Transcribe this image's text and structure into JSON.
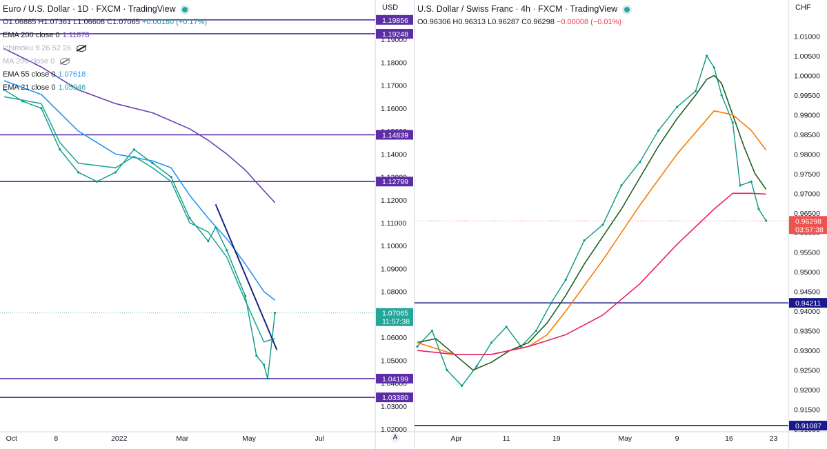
{
  "chart_data": [
    {
      "type": "line",
      "title": "Euro / U.S. Dollar · 1D · FXCM · TradingView",
      "symbol": "Euro / U.S. Dollar",
      "interval": "1D",
      "source": "FXCM",
      "platform": "TradingView",
      "ohlc": {
        "open": "O1.06885",
        "high": "H1.07361",
        "low": "L1.06608",
        "close": "C1.07065",
        "change": "+0.00180 (+0.17%)"
      },
      "indicators": [
        {
          "label": "EMA 200 close 0",
          "value": "1.11878",
          "color": "#6a3fb5",
          "hidden": false
        },
        {
          "label": "Ichimoku 9 26 52 26",
          "value": "",
          "color": "#b2b5be",
          "hidden": true
        },
        {
          "label": "MA 200 close 0",
          "value": "",
          "color": "#b2b5be",
          "hidden": true
        },
        {
          "label": "EMA 55 close 0",
          "value": "1.07618",
          "color": "#2196f3",
          "hidden": false
        },
        {
          "label": "EMA 21 close 0",
          "value": "1.05946",
          "color": "#26a69a",
          "hidden": false
        }
      ],
      "price_unit": "USD",
      "ylim": [
        1.02,
        1.2
      ],
      "y_ticks": [
        "1.19000",
        "1.18000",
        "1.17000",
        "1.16000",
        "1.15000",
        "1.14000",
        "1.13000",
        "1.12000",
        "1.11000",
        "1.10000",
        "1.09000",
        "1.08000",
        "1.07000",
        "1.06000",
        "1.05000",
        "1.04000",
        "1.03000",
        "1.02000"
      ],
      "x_labels": [
        "Oct",
        "8",
        "2022",
        "Mar",
        "May",
        "Jul"
      ],
      "x_label_positions": [
        0.02,
        0.14,
        0.31,
        0.48,
        0.66,
        0.85
      ],
      "horizontal_levels": [
        {
          "value": 1.19856,
          "label": "1.19856"
        },
        {
          "value": 1.19248,
          "label": "1.19248"
        },
        {
          "value": 1.14839,
          "label": "1.14839"
        },
        {
          "value": 1.12799,
          "label": "1.12799"
        },
        {
          "value": 1.04199,
          "label": "1.04199"
        },
        {
          "value": 1.0338,
          "label": "1.03380"
        }
      ],
      "last_price": {
        "value": 1.07065,
        "label": "1.07065",
        "countdown": "11:57:38"
      },
      "trendline": {
        "from": {
          "x": 0.57,
          "y": 1.118
        },
        "to": {
          "x": 0.735,
          "y": 1.0545
        },
        "color": "#1a237e"
      },
      "series": [
        {
          "name": "Close",
          "color": "#089981",
          "x": [
            0,
            0.05,
            0.1,
            0.15,
            0.2,
            0.25,
            0.3,
            0.35,
            0.4,
            0.45,
            0.5,
            0.55,
            0.57,
            0.6,
            0.65,
            0.68,
            0.7,
            0.71,
            0.73
          ],
          "values": [
            1.168,
            1.163,
            1.16,
            1.142,
            1.132,
            1.128,
            1.132,
            1.142,
            1.136,
            1.13,
            1.112,
            1.102,
            1.108,
            1.098,
            1.078,
            1.052,
            1.048,
            1.042,
            1.0707
          ]
        },
        {
          "name": "EMA 200 close 0",
          "color": "#6a3fb5",
          "x": [
            0,
            0.1,
            0.2,
            0.3,
            0.4,
            0.5,
            0.55,
            0.6,
            0.65,
            0.7,
            0.73
          ],
          "values": [
            1.186,
            1.178,
            1.168,
            1.162,
            1.158,
            1.151,
            1.146,
            1.14,
            1.133,
            1.124,
            1.1188
          ]
        },
        {
          "name": "EMA 55 close 0",
          "color": "#2196f3",
          "x": [
            0,
            0.1,
            0.2,
            0.3,
            0.4,
            0.45,
            0.5,
            0.55,
            0.6,
            0.65,
            0.7,
            0.73
          ],
          "values": [
            1.172,
            1.166,
            1.15,
            1.14,
            1.137,
            1.134,
            1.122,
            1.112,
            1.103,
            1.092,
            1.08,
            1.0762
          ]
        },
        {
          "name": "EMA 21 close 0",
          "color": "#26a69a",
          "x": [
            0,
            0.1,
            0.15,
            0.2,
            0.3,
            0.35,
            0.4,
            0.45,
            0.5,
            0.55,
            0.6,
            0.65,
            0.7,
            0.73
          ],
          "values": [
            1.165,
            1.162,
            1.145,
            1.136,
            1.134,
            1.139,
            1.134,
            1.128,
            1.11,
            1.106,
            1.095,
            1.076,
            1.058,
            1.0595
          ]
        }
      ]
    },
    {
      "type": "line",
      "title": "U.S. Dollar / Swiss Franc · 4h · FXCM · TradingView",
      "symbol": "U.S. Dollar / Swiss Franc",
      "interval": "4h",
      "source": "FXCM",
      "platform": "TradingView",
      "ohlc": {
        "open": "O0.96306",
        "high": "H0.96313",
        "low": "L0.96287",
        "close": "C0.96298",
        "change": "−0.00008 (−0.01%)"
      },
      "price_unit": "CHF",
      "ylim": [
        0.91,
        1.015
      ],
      "y_ticks": [
        "1.01000",
        "1.00500",
        "1.00000",
        "0.99500",
        "0.99000",
        "0.98500",
        "0.98000",
        "0.97500",
        "0.97000",
        "0.96500",
        "0.96000",
        "0.95500",
        "0.95000",
        "0.94500",
        "0.94000",
        "0.93500",
        "0.93000",
        "0.92500",
        "0.92000",
        "0.91500",
        "0.91000"
      ],
      "x_labels": [
        "Apr",
        "11",
        "19",
        "May",
        "9",
        "16",
        "23"
      ],
      "x_label_positions": [
        0.105,
        0.24,
        0.375,
        0.56,
        0.7,
        0.84,
        0.96
      ],
      "horizontal_levels": [
        {
          "value": 0.94211,
          "label": "0.94211"
        },
        {
          "value": 0.91087,
          "label": "0.91087"
        }
      ],
      "last_price": {
        "value": 0.96298,
        "label": "0.96298",
        "countdown": "03:57:38"
      },
      "series": [
        {
          "name": "Close",
          "color": "#089981",
          "x": [
            0,
            0.04,
            0.08,
            0.12,
            0.16,
            0.2,
            0.24,
            0.28,
            0.32,
            0.36,
            0.4,
            0.45,
            0.5,
            0.55,
            0.6,
            0.65,
            0.7,
            0.75,
            0.78,
            0.8,
            0.82,
            0.85,
            0.87,
            0.9,
            0.92,
            0.94
          ],
          "values": [
            0.931,
            0.935,
            0.925,
            0.921,
            0.926,
            0.932,
            0.936,
            0.931,
            0.935,
            0.942,
            0.948,
            0.958,
            0.962,
            0.972,
            0.978,
            0.986,
            0.992,
            0.996,
            1.005,
            1.002,
            0.995,
            0.988,
            0.972,
            0.973,
            0.966,
            0.963
          ]
        },
        {
          "name": "Green MA",
          "color": "#1b5e20",
          "x": [
            0,
            0.05,
            0.1,
            0.15,
            0.2,
            0.25,
            0.3,
            0.35,
            0.4,
            0.45,
            0.5,
            0.55,
            0.6,
            0.65,
            0.7,
            0.75,
            0.78,
            0.8,
            0.82,
            0.85,
            0.88,
            0.91,
            0.94
          ],
          "values": [
            0.932,
            0.933,
            0.929,
            0.925,
            0.927,
            0.93,
            0.932,
            0.937,
            0.944,
            0.952,
            0.959,
            0.966,
            0.974,
            0.982,
            0.989,
            0.995,
            0.999,
            1.0,
            0.998,
            0.99,
            0.982,
            0.975,
            0.971
          ]
        },
        {
          "name": "Orange MA",
          "color": "#f57c00",
          "x": [
            0,
            0.1,
            0.2,
            0.3,
            0.35,
            0.4,
            0.5,
            0.6,
            0.7,
            0.8,
            0.85,
            0.9,
            0.94
          ],
          "values": [
            0.932,
            0.929,
            0.929,
            0.931,
            0.934,
            0.94,
            0.953,
            0.967,
            0.98,
            0.991,
            0.99,
            0.986,
            0.981
          ]
        },
        {
          "name": "Red MA",
          "color": "#e91e63",
          "x": [
            0,
            0.1,
            0.2,
            0.3,
            0.4,
            0.5,
            0.6,
            0.7,
            0.8,
            0.85,
            0.9,
            0.94
          ],
          "values": [
            0.93,
            0.929,
            0.929,
            0.931,
            0.934,
            0.939,
            0.947,
            0.957,
            0.966,
            0.97,
            0.97,
            0.9698
          ]
        }
      ]
    }
  ]
}
